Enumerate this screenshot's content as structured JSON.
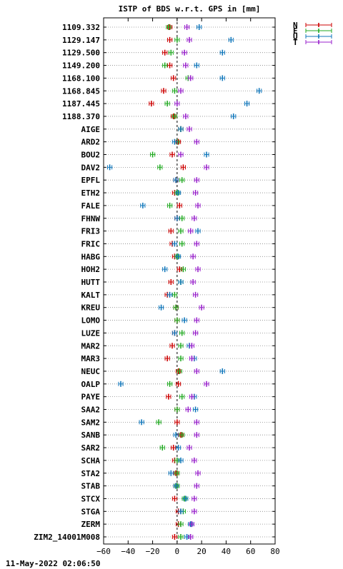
{
  "chart_data": {
    "type": "scatter",
    "title": "ISTP of BDS w.r.t. GPS in [mm]",
    "xlim": [
      -60,
      80
    ],
    "x_ticks": [
      "-60",
      "-40",
      "-20",
      "0",
      "20",
      "40",
      "60",
      "80"
    ],
    "grid": true,
    "legend_position": "top-right",
    "categories": [
      "1109.332",
      "1129.147",
      "1129.500",
      "1149.200",
      "1168.100",
      "1168.845",
      "1187.445",
      "1188.370",
      "AIGE",
      "ARD2",
      "BOU2",
      "DAV2",
      "EPFL",
      "ETH2",
      "FALE",
      "FHNW",
      "FRI3",
      "FRIC",
      "HABG",
      "HOH2",
      "HUTT",
      "KALT",
      "KREU",
      "LOMO",
      "LUZE",
      "MAR2",
      "MAR3",
      "NEUC",
      "OALP",
      "PAYE",
      "SAA2",
      "SAM2",
      "SANB",
      "SAR2",
      "SCHA",
      "STA2",
      "STAB",
      "STCX",
      "STGA",
      "ZERM",
      "ZIM2_14001M008"
    ],
    "series": [
      {
        "name": "N",
        "color": "#cc0000",
        "values": [
          -6,
          -6,
          -10,
          -6,
          -3,
          -11,
          -21,
          -3,
          3,
          1,
          -4,
          5,
          -1,
          -2,
          2,
          0,
          -5,
          -4,
          -2,
          2,
          -5,
          -8,
          -1,
          0,
          -2,
          -4,
          -8,
          1,
          1,
          -7,
          0,
          0,
          3,
          -3,
          -2,
          -1,
          -1,
          -2,
          1,
          1,
          -2
        ]
      },
      {
        "name": "E",
        "color": "#22aa22",
        "values": [
          -7,
          0,
          -5,
          -10,
          9,
          -2,
          -8,
          -2,
          3,
          0,
          -20,
          -14,
          4,
          0,
          -6,
          4,
          3,
          4,
          0,
          5,
          3,
          -2,
          -1,
          0,
          4,
          3,
          3,
          2,
          -6,
          4,
          0,
          -15,
          4,
          -12,
          0,
          0,
          0,
          6,
          5,
          3,
          3
        ]
      },
      {
        "name": "U",
        "color": "#1177bb",
        "values": [
          18,
          44,
          37,
          16,
          37,
          67,
          57,
          46,
          3,
          -2,
          24,
          -55,
          -1,
          1,
          -28,
          0,
          17,
          -2,
          1,
          -10,
          3,
          -6,
          -13,
          6,
          -2,
          10,
          14,
          37,
          -46,
          14,
          15,
          -29,
          -1,
          1,
          3,
          -5,
          -1,
          7,
          3,
          11,
          8
        ]
      },
      {
        "name": "T",
        "color": "#9922cc",
        "values": [
          8,
          10,
          6,
          7,
          11,
          3,
          0,
          7,
          10,
          16,
          3,
          24,
          16,
          15,
          17,
          14,
          11,
          16,
          13,
          17,
          13,
          15,
          20,
          16,
          15,
          12,
          12,
          16,
          24,
          12,
          9,
          16,
          16,
          10,
          14,
          17,
          16,
          14,
          14,
          12,
          11
        ]
      }
    ]
  },
  "timestamp": "11-May-2022 02:06:50"
}
